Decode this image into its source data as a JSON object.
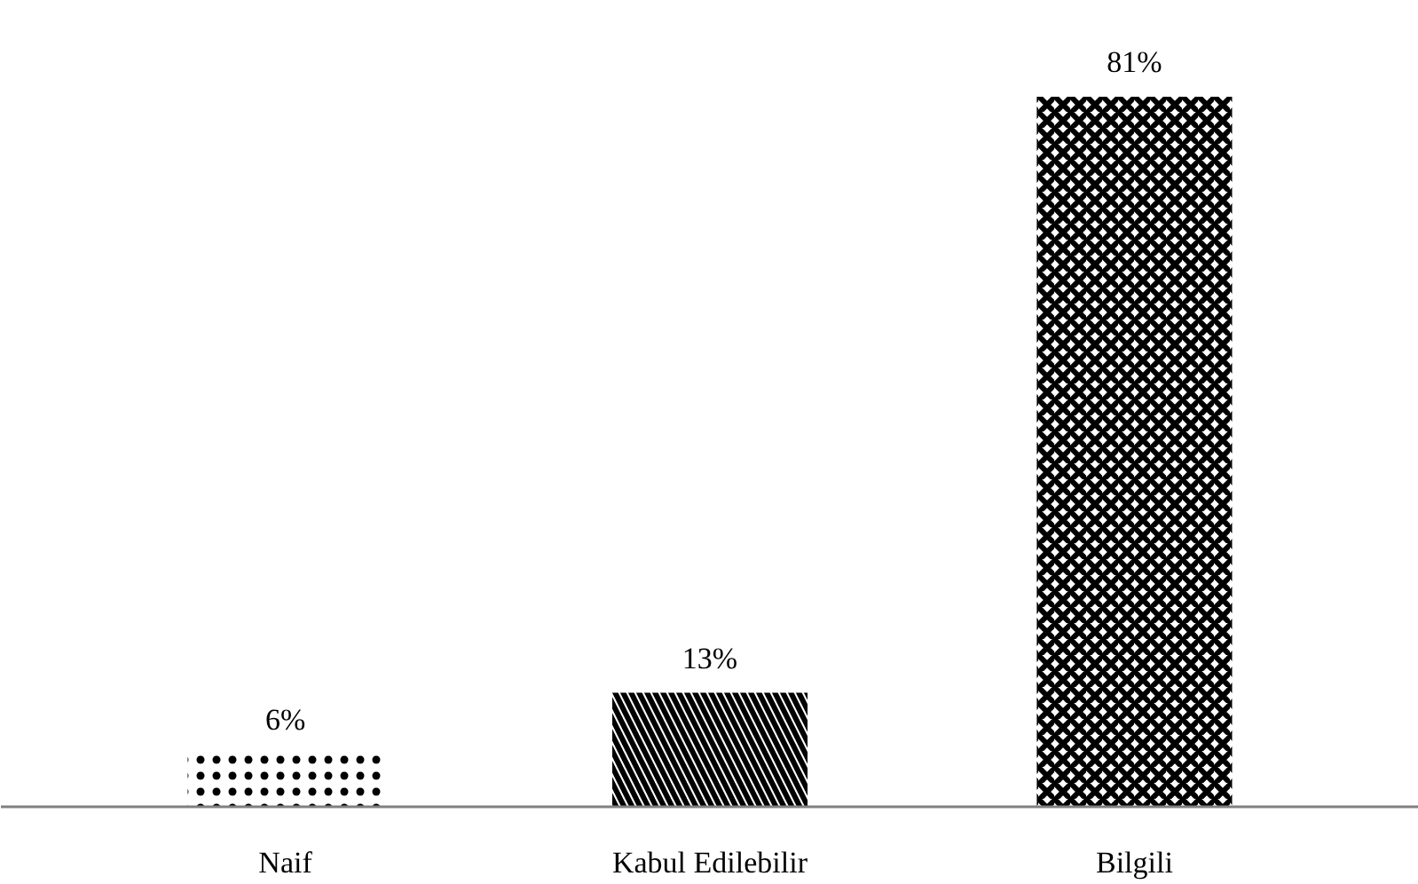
{
  "chart_data": {
    "type": "bar",
    "categories": [
      "Naif",
      "Kabul Edilebilir",
      "Bilgili"
    ],
    "values": [
      6,
      13,
      81
    ],
    "value_labels": [
      "6%",
      "13%",
      "81%"
    ],
    "colors": [
      "#000000",
      "#000000",
      "#000000"
    ],
    "grid": false
  }
}
